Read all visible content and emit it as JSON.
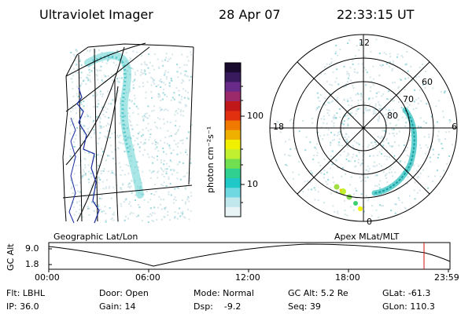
{
  "header": {
    "instrument": "Ultraviolet Imager",
    "date": "28 Apr 07",
    "time": "22:33:15 UT"
  },
  "colorbar": {
    "unit_label": "photon cm⁻²s⁻¹",
    "ticks": [
      "100",
      "10"
    ],
    "colors": [
      "#1a0a2e",
      "#3a1a5e",
      "#6a2a8a",
      "#9a2a6a",
      "#c01818",
      "#e03010",
      "#f07a00",
      "#f0b000",
      "#f0f000",
      "#c0f030",
      "#70e050",
      "#30d090",
      "#20c8c8",
      "#70d8e0",
      "#c0e8ec",
      "#e8f4f6"
    ]
  },
  "polar": {
    "mlt_labels": [
      "12",
      "18",
      "6",
      "0"
    ],
    "lat_labels": [
      "60",
      "70",
      "80"
    ]
  },
  "panels": {
    "left_label": "Geographic Lat/Lon",
    "right_label": "Apex MLat/MLT"
  },
  "altitude_plot": {
    "ylabel": "GC Alt",
    "yticks": [
      "9.0",
      "1.8"
    ],
    "xticks": [
      "00:00",
      "06:00",
      "12:00",
      "18:00",
      "23:59"
    ]
  },
  "footer": {
    "filter": "Flt: LBHL",
    "door": "Door: Open",
    "mode": "Mode: Normal",
    "gc_alt": "GC Alt: 5.2 Re",
    "glat": "GLat: -61.3",
    "ip": "IP: 36.0",
    "gain": "Gain: 14",
    "dsp": "Dsp:    -9.2",
    "seq": "Seq: 39",
    "glon": "GLon: 110.3"
  }
}
